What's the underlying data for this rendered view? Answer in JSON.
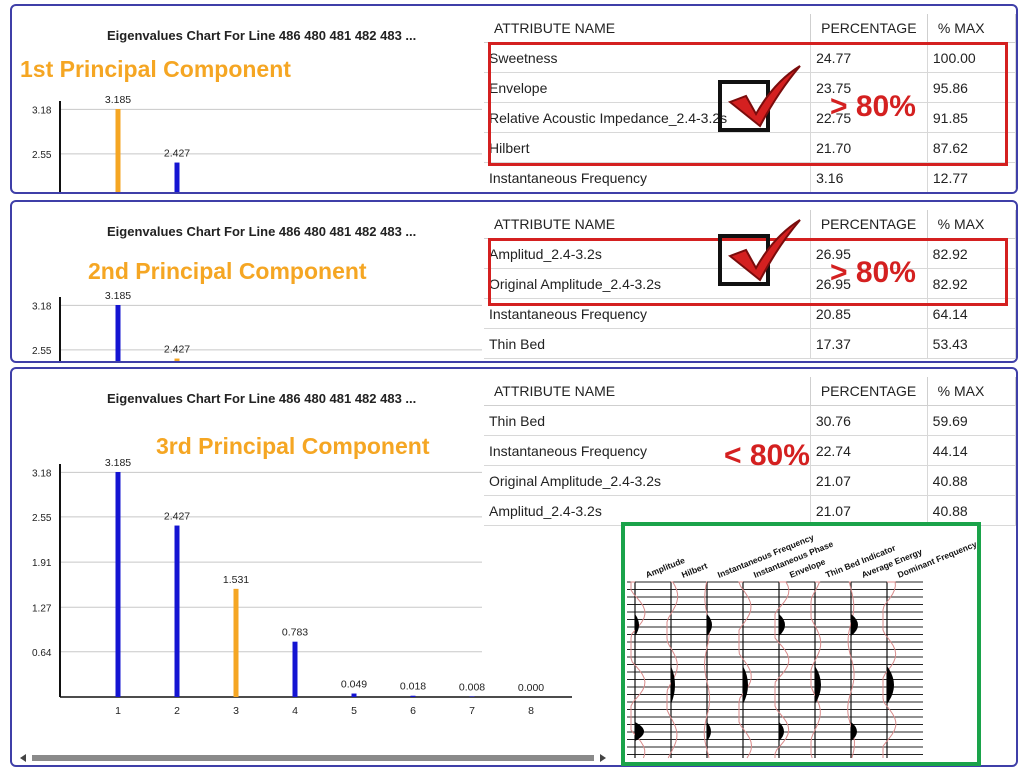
{
  "chart_title": "Eigenvalues Chart For Line   486 480 481 482 483 ...",
  "panels": [
    {
      "label": "1st Principal Component",
      "highlight": 1,
      "table": {
        "headers": [
          "ATTRIBUTE NAME",
          "PERCENTAGE",
          "% MAX"
        ],
        "rows": [
          [
            "Sweetness",
            "24.77",
            "100.00"
          ],
          [
            "Envelope",
            "23.75",
            "95.86"
          ],
          [
            "Relative Acoustic Impedance_2.4-3.2s",
            "22.75",
            "91.85"
          ],
          [
            "Hilbert",
            "21.70",
            "87.62"
          ],
          [
            "Instantaneous Frequency",
            "3.16",
            "12.77"
          ]
        ]
      },
      "annotation": "> 80%"
    },
    {
      "label": "2nd Principal Component",
      "highlight": 2,
      "table": {
        "headers": [
          "ATTRIBUTE NAME",
          "PERCENTAGE",
          "% MAX"
        ],
        "rows": [
          [
            "Amplitud_2.4-3.2s",
            "26.95",
            "82.92"
          ],
          [
            "Original Amplitude_2.4-3.2s",
            "26.95",
            "82.92"
          ],
          [
            "Instantaneous Frequency",
            "20.85",
            "64.14"
          ],
          [
            "Thin Bed",
            "17.37",
            "53.43"
          ]
        ]
      },
      "annotation": "> 80%"
    },
    {
      "label": "3rd Principal Component",
      "highlight": 3,
      "table": {
        "headers": [
          "ATTRIBUTE NAME",
          "PERCENTAGE",
          "% MAX"
        ],
        "rows": [
          [
            "Thin Bed",
            "30.76",
            "59.69"
          ],
          [
            "Instantaneous Frequency",
            "22.74",
            "44.14"
          ],
          [
            "Original Amplitude_2.4-3.2s",
            "21.07",
            "40.88"
          ],
          [
            "Amplitud_2.4-3.2s",
            "21.07",
            "40.88"
          ]
        ]
      },
      "annotation": "< 80%"
    }
  ],
  "chart_data": {
    "type": "bar",
    "title": "Eigenvalues Chart For Line   486 480 481 482 483 ...",
    "categories": [
      "1",
      "2",
      "3",
      "4",
      "5",
      "6",
      "7",
      "8"
    ],
    "values": [
      3.185,
      2.427,
      1.531,
      0.783,
      0.049,
      0.018,
      0.008,
      0.0
    ],
    "value_labels": [
      "3.185",
      "2.427",
      "1.531",
      "0.783",
      "0.049",
      "0.018",
      "0.008",
      "0.000"
    ],
    "yticks": [
      "0.64",
      "1.27",
      "1.91",
      "2.55",
      "3.18"
    ],
    "ylim": [
      0,
      3.5
    ],
    "grid": true,
    "bar_color": "#1414d2",
    "highlight_color": "#f5a623"
  },
  "log_tracks": [
    "Amplitude",
    "Hilbert",
    "Instantaneous Frequency",
    "Instantaneous Phase",
    "Envelope",
    "Thin Bed Indicator",
    "Average Energy",
    "Dominant Frequency"
  ],
  "colors": {
    "red": "#d42020",
    "green": "#1aa34a",
    "orange": "#f5a623",
    "blue": "#1414d2",
    "border": "#3f3fa8"
  }
}
